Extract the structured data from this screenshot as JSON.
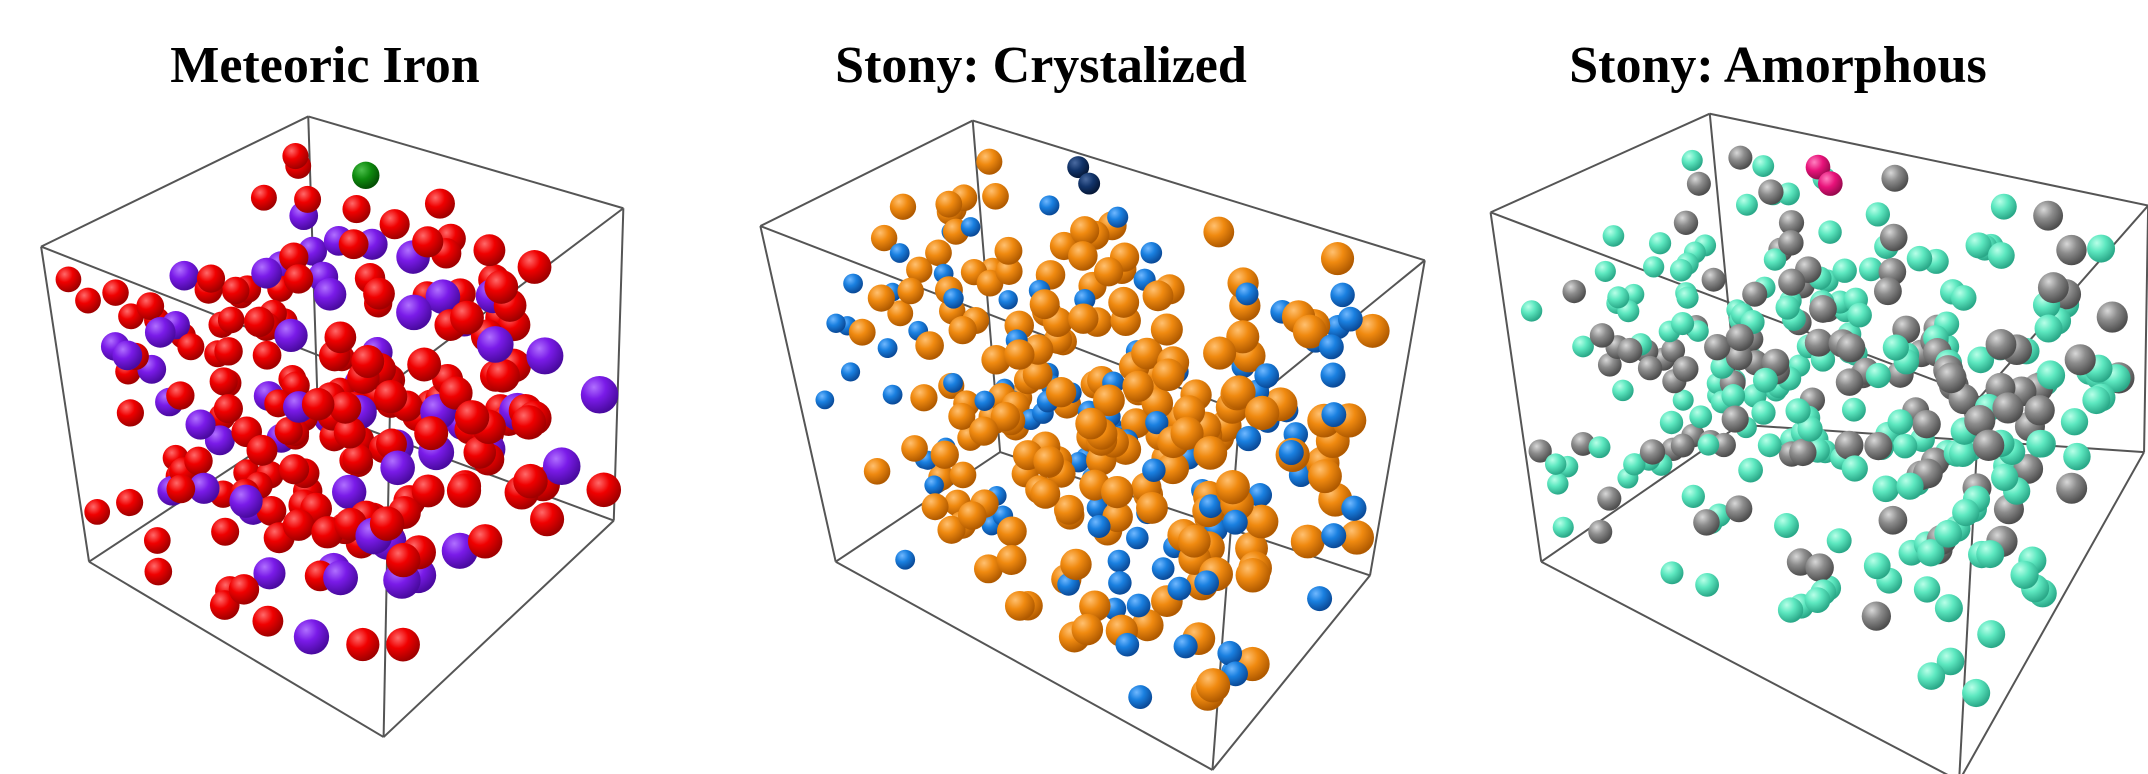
{
  "panels": [
    {
      "title": "Meteoric Iron"
    },
    {
      "title": "Stony: Crystalized"
    },
    {
      "title": "Stony: Amorphous"
    }
  ]
}
